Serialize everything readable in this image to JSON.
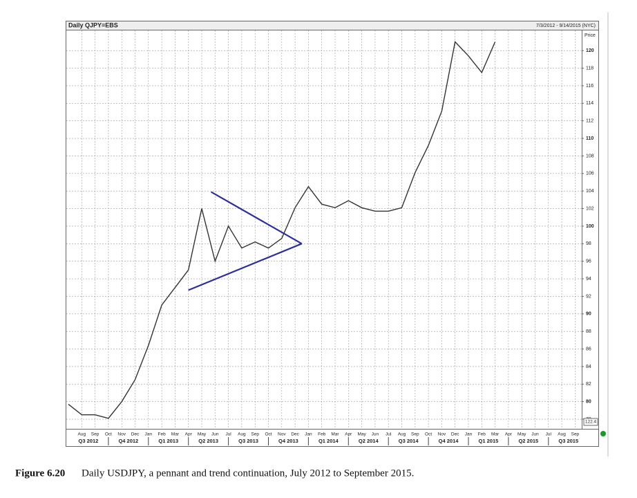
{
  "chart_data": {
    "type": "line",
    "title": "Daily QJPY=EBS",
    "date_range": "7/3/2012 - 9/14/2015 (NYC)",
    "y_axis_label": "Price",
    "categories": [
      null,
      "Aug",
      "Sep",
      "Oct",
      "Nov",
      "Dec",
      "Jan",
      "Feb",
      "Mar",
      "Apr",
      "May",
      "Jun",
      "Jul",
      "Aug",
      "Sep",
      "Oct",
      "Nov",
      "Dec",
      "Jan",
      "Feb",
      "Mar",
      "Apr",
      "May",
      "Jun",
      "Jul",
      "Aug",
      "Sep",
      "Oct",
      "Nov",
      "Dec",
      "Jan",
      "Feb",
      "Mar",
      "Apr",
      "May",
      "Jun",
      "Jul",
      "Aug",
      "Sep"
    ],
    "quarters": [
      "Q3 2012",
      "Q4 2012",
      "Q1 2013",
      "Q2 2013",
      "Q3 2013",
      "Q4 2013",
      "Q1 2014",
      "Q2 2014",
      "Q3 2014",
      "Q4 2014",
      "Q1 2015",
      "Q2 2015",
      "Q3 2015"
    ],
    "series": [
      {
        "name": "QJPY=EBS",
        "color": "#333333",
        "values": [
          79.7,
          78.5,
          78.5,
          78.1,
          80,
          82.5,
          86.4,
          91,
          93,
          95,
          102,
          96,
          100,
          97.5,
          98.2,
          97.5,
          98.6,
          102.1,
          104.5,
          102.5,
          102.1,
          102.9,
          102.1,
          101.7,
          101.7,
          102.1,
          106.1,
          109.2,
          113.1,
          121,
          119.4,
          117.5,
          121,
          null,
          null,
          null,
          null,
          null,
          null
        ]
      }
    ],
    "pennant": {
      "color": "#2e2e99",
      "points": [
        {
          "x": 9,
          "y": 92.7
        },
        {
          "x": 10.7,
          "y": 103.9
        },
        {
          "x": 17.5,
          "y": 98.0
        }
      ]
    },
    "last_price": 122.4,
    "ylim": [
      76.9,
      122.3
    ],
    "yticks": [
      78,
      80,
      82,
      84,
      86,
      88,
      90,
      92,
      94,
      96,
      98,
      100,
      102,
      104,
      106,
      108,
      110,
      112,
      114,
      116,
      118,
      120
    ],
    "grid": true
  },
  "caption": {
    "label": "Figure 6.20",
    "text": "Daily USDJPY, a pennant and trend continuation, July 2012 to September 2015."
  }
}
